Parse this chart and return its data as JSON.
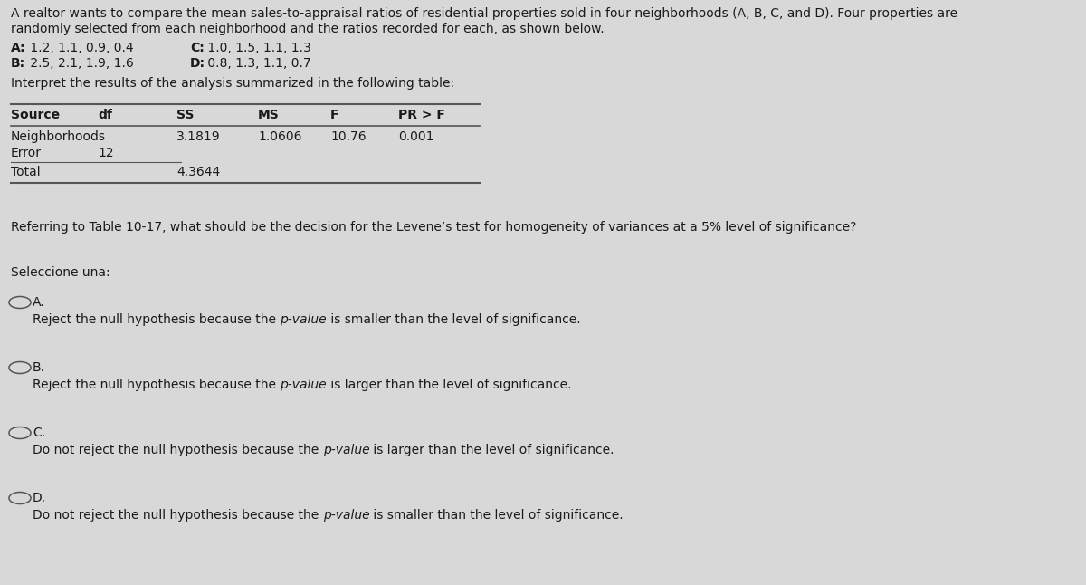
{
  "bg_color": "#d8d8d8",
  "text_color": "#1a1a1a",
  "intro_line1": "A realtor wants to compare the mean sales-to-appraisal ratios of residential properties sold in four neighborhoods (A, B, C, and D). Four properties are",
  "intro_line2": "randomly selected from each neighborhood and the ratios recorded for each, as shown below.",
  "a_label": "A:",
  "a_data": " 1.2, 1.1, 0.9, 0.4",
  "c_label": "C:",
  "c_data": " 1.0, 1.5, 1.1, 1.3",
  "b_label": "B:",
  "b_data": " 2.5, 2.1, 1.9, 1.6",
  "d_label": "D:",
  "d_data": " 0.8, 1.3, 1.1, 0.7",
  "interpret_text": "Interpret the results of the analysis summarized in the following table:",
  "table_headers": [
    "Source",
    "df",
    "SS",
    "MS",
    "F",
    "PR > F"
  ],
  "table_row0": [
    "Neighborhoods",
    "",
    "3.1819",
    "1.0606",
    "10.76",
    "0.001"
  ],
  "table_row1": [
    "Error",
    "12",
    "",
    "",
    "",
    ""
  ],
  "table_row2": [
    "Total",
    "",
    "4.3644",
    "",
    "",
    ""
  ],
  "question_text": "Referring to Table 10-17, what should be the decision for the Levene’s test for homogeneity of variances at a 5% level of significance?",
  "seleccione_text": "Seleccione una:",
  "opt_labels": [
    "A.",
    "B.",
    "C.",
    "D."
  ],
  "opt_texts": [
    "Reject the null hypothesis because the p-value is smaller than the level of significance.",
    "Reject the null hypothesis because the p-value is larger than the level of significance.",
    "Do not reject the null hypothesis because the p-value is larger than the level of significance.",
    "Do not reject the null hypothesis because the p-value is smaller than the level of significance."
  ],
  "fs": 10.0,
  "table_line_color": "#555555",
  "circle_color": "#555555"
}
